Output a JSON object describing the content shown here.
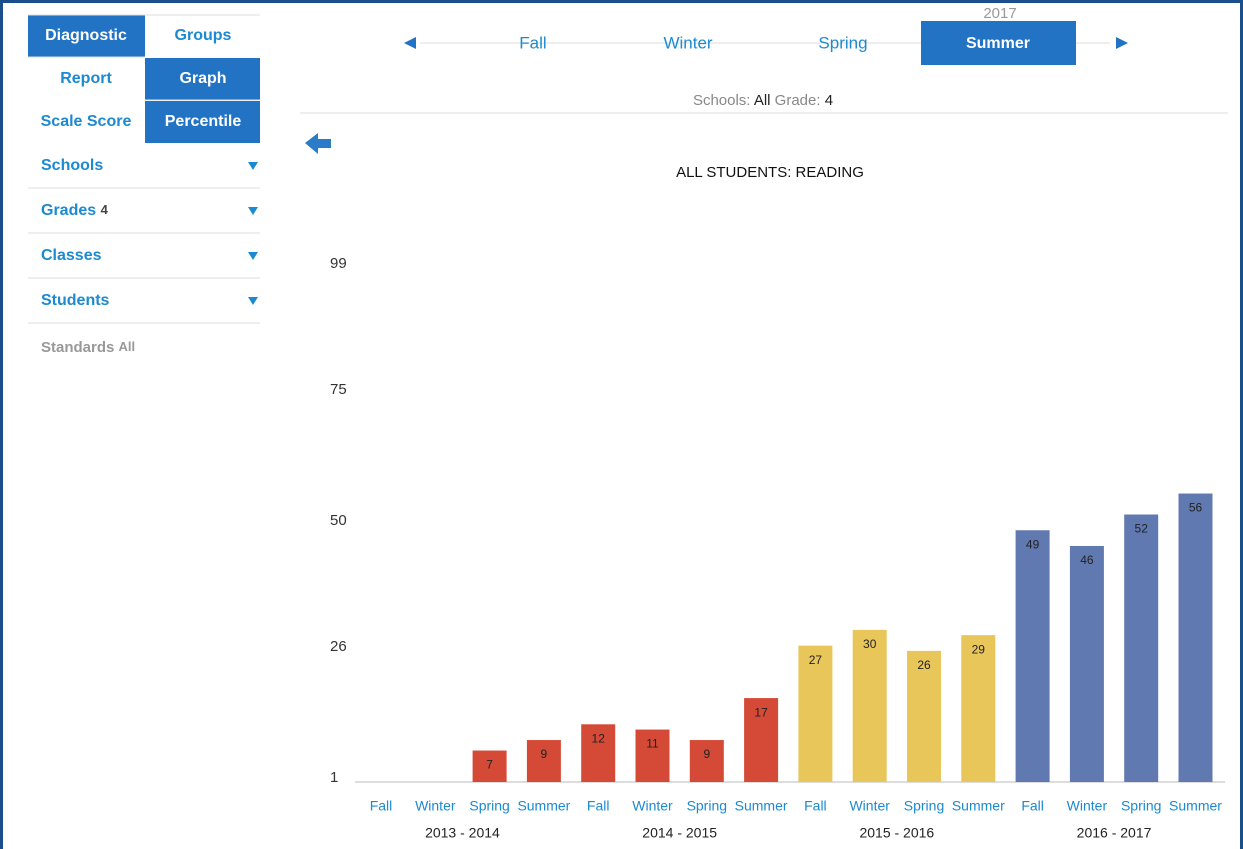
{
  "sidebar": {
    "tabs": [
      [
        "Diagnostic",
        "Groups"
      ],
      [
        "Report",
        "Graph"
      ],
      [
        "Scale Score",
        "Percentile"
      ]
    ],
    "filters": [
      {
        "label": "Schools"
      },
      {
        "label": "Grades",
        "value": "4"
      },
      {
        "label": "Classes"
      },
      {
        "label": "Students"
      }
    ],
    "standards": {
      "label": "Standards",
      "value": "All"
    }
  },
  "nav": {
    "year": "2017",
    "seasons": [
      "Fall",
      "Winter",
      "Spring",
      "Summer"
    ],
    "selected": 3
  },
  "selection": {
    "schools_label": "Schools:",
    "schools": "All",
    "grade_label": "Grade:",
    "grade": "4"
  },
  "chart": {
    "type": "bar",
    "title": "ALL STUDENTS: READING",
    "ylim": [
      1,
      99
    ],
    "yticks": [
      1,
      26,
      50,
      75,
      99
    ],
    "groups": [
      {
        "name": "2013 - 2014",
        "color": "#d44a36",
        "categories": [
          "Fall",
          "Winter",
          "Spring",
          "Summer"
        ],
        "values": [
          null,
          null,
          7,
          9
        ]
      },
      {
        "name": "2014 - 2015",
        "color": "#d44a36",
        "categories": [
          "Fall",
          "Winter",
          "Spring",
          "Summer"
        ],
        "values": [
          12,
          11,
          9,
          17
        ]
      },
      {
        "name": "2015 - 2016",
        "color": "#e9c65a",
        "categories": [
          "Fall",
          "Winter",
          "Spring",
          "Summer"
        ],
        "values": [
          27,
          30,
          26,
          29
        ]
      },
      {
        "name": "2016 - 2017",
        "color": "#6079b1",
        "categories": [
          "Fall",
          "Winter",
          "Spring",
          "Summer"
        ],
        "values": [
          49,
          46,
          52,
          56
        ]
      }
    ]
  }
}
